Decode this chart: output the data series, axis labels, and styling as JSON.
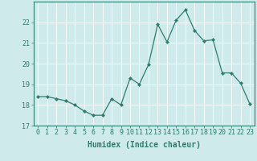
{
  "x": [
    0,
    1,
    2,
    3,
    4,
    5,
    6,
    7,
    8,
    9,
    10,
    11,
    12,
    13,
    14,
    15,
    16,
    17,
    18,
    19,
    20,
    21,
    22,
    23
  ],
  "y": [
    18.4,
    18.4,
    18.3,
    18.2,
    18.0,
    17.7,
    17.5,
    17.5,
    18.3,
    18.0,
    19.3,
    19.0,
    19.95,
    21.9,
    21.05,
    22.1,
    22.6,
    21.6,
    21.1,
    21.15,
    19.55,
    19.55,
    19.05,
    18.05
  ],
  "line_color": "#2e7d6e",
  "marker": "D",
  "marker_size": 2,
  "bg_color": "#ceeaea",
  "grid_color": "#ffffff",
  "xlabel": "Humidex (Indice chaleur)",
  "ylim": [
    17,
    23
  ],
  "xlim": [
    -0.5,
    23.5
  ],
  "yticks": [
    17,
    18,
    19,
    20,
    21,
    22
  ],
  "xticks": [
    0,
    1,
    2,
    3,
    4,
    5,
    6,
    7,
    8,
    9,
    10,
    11,
    12,
    13,
    14,
    15,
    16,
    17,
    18,
    19,
    20,
    21,
    22,
    23
  ],
  "label_fontsize": 7,
  "tick_fontsize": 6,
  "grid_linewidth": 0.6,
  "line_width": 0.9
}
